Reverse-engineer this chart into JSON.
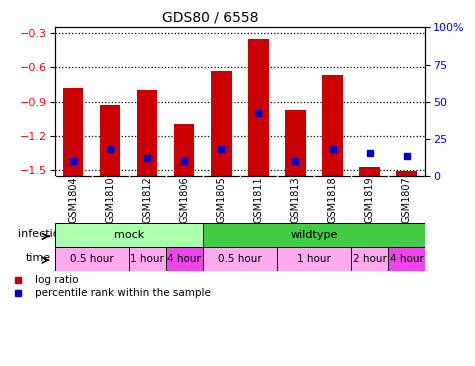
{
  "title": "GDS80 / 6558",
  "samples": [
    "GSM1804",
    "GSM1810",
    "GSM1812",
    "GSM1806",
    "GSM1805",
    "GSM1811",
    "GSM1813",
    "GSM1818",
    "GSM1819",
    "GSM1807"
  ],
  "log_ratios": [
    -0.78,
    -0.93,
    -0.8,
    -1.1,
    -0.63,
    -0.35,
    -0.97,
    -0.67,
    -1.47,
    -1.51
  ],
  "percentile_ranks": [
    10,
    18,
    12,
    10,
    18,
    42,
    10,
    18,
    15,
    13
  ],
  "ylim_left": [
    -1.55,
    -0.25
  ],
  "ylim_right": [
    0,
    100
  ],
  "yticks_left": [
    -1.5,
    -1.2,
    -0.9,
    -0.6,
    -0.3
  ],
  "yticks_right": [
    0,
    25,
    50,
    75,
    100
  ],
  "bar_color": "#cc0000",
  "dot_color": "#0000cc",
  "infection_groups": [
    {
      "label": "mock",
      "start": 0,
      "end": 4,
      "color": "#aaffaa"
    },
    {
      "label": "wildtype",
      "start": 4,
      "end": 10,
      "color": "#44cc44"
    }
  ],
  "time_groups": [
    {
      "label": "0.5 hour",
      "start": 0,
      "end": 2,
      "color": "#ffaaee"
    },
    {
      "label": "1 hour",
      "start": 2,
      "end": 3,
      "color": "#ffaaee"
    },
    {
      "label": "4 hour",
      "start": 3,
      "end": 4,
      "color": "#ee44ee"
    },
    {
      "label": "0.5 hour",
      "start": 4,
      "end": 6,
      "color": "#ffaaee"
    },
    {
      "label": "1 hour",
      "start": 6,
      "end": 8,
      "color": "#ffaaee"
    },
    {
      "label": "2 hour",
      "start": 8,
      "end": 9,
      "color": "#ffaaee"
    },
    {
      "label": "4 hour",
      "start": 9,
      "end": 10,
      "color": "#ee44ee"
    }
  ],
  "legend_items": [
    {
      "label": "log ratio",
      "color": "#cc0000"
    },
    {
      "label": "percentile rank within the sample",
      "color": "#0000cc"
    }
  ],
  "bar_width": 0.55,
  "dot_size": 4.5,
  "title_fontsize": 10,
  "tick_fontsize": 8,
  "label_fontsize": 8,
  "sample_fontsize": 7,
  "time_fontsize": 7.5,
  "infection_fontsize": 8,
  "legend_fontsize": 7.5,
  "grid_linestyle": ":",
  "grid_linewidth": 0.9,
  "grid_color": "#000000"
}
